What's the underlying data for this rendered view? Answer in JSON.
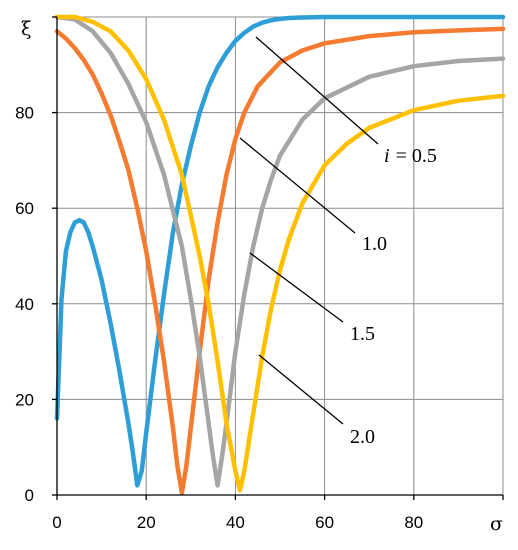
{
  "chart_data": {
    "type": "line",
    "xlabel": "σ",
    "ylabel": "ξ",
    "xlim": [
      0,
      100
    ],
    "ylim": [
      0,
      100
    ],
    "xticks": [
      "0",
      "20",
      "40",
      "60",
      "80"
    ],
    "yticks": [
      "0",
      "20",
      "40",
      "60",
      "80"
    ],
    "grid": true,
    "series": [
      {
        "name": "i = 0.5",
        "name_var": "i",
        "name_value": "= 0.5",
        "color": "#2e9fd6",
        "x": [
          0,
          1,
          2,
          3,
          4,
          5,
          6,
          7,
          8,
          10,
          12,
          14,
          16,
          17,
          18,
          19,
          20,
          22,
          24,
          26,
          28,
          30,
          32,
          34,
          36,
          38,
          40,
          42,
          44,
          46,
          48,
          50,
          52,
          55,
          60,
          70,
          80,
          90,
          100
        ],
        "y": [
          16,
          41,
          51,
          55,
          57,
          57.5,
          57,
          55,
          52,
          45,
          36,
          26,
          15,
          9,
          2,
          5,
          13,
          28,
          42,
          55,
          65,
          73,
          80,
          85.5,
          89.5,
          92.5,
          95,
          96.7,
          98,
          98.8,
          99.3,
          99.6,
          99.8,
          99.9,
          100,
          100,
          100,
          100,
          100
        ]
      },
      {
        "name": "1.0",
        "color": "#f47b2f",
        "x": [
          0,
          2,
          4,
          6,
          8,
          10,
          12,
          14,
          16,
          18,
          20,
          22,
          24,
          26,
          27,
          28,
          29,
          30,
          32,
          34,
          36,
          38,
          40,
          42,
          45,
          50,
          55,
          60,
          70,
          80,
          90,
          100
        ],
        "y": [
          97,
          95.5,
          93.5,
          91,
          88,
          84,
          79.5,
          74,
          68,
          60,
          51,
          40,
          28,
          14,
          6,
          0.5,
          6,
          14,
          30,
          45,
          57,
          67,
          74.5,
          80,
          85.5,
          90.5,
          93,
          94.5,
          96,
          96.8,
          97.2,
          97.5
        ]
      },
      {
        "name": "1.5",
        "color": "#a5a5a5",
        "x": [
          0,
          4,
          8,
          12,
          16,
          20,
          24,
          28,
          30,
          32,
          34,
          35,
          36,
          37,
          38,
          40,
          42,
          44,
          46,
          48,
          50,
          55,
          60,
          70,
          80,
          90,
          100
        ],
        "y": [
          100,
          99.5,
          97,
          92.5,
          86,
          78,
          67,
          52,
          41,
          29,
          15,
          8,
          2,
          8,
          15,
          30,
          42,
          52,
          60,
          66,
          71,
          78.5,
          83,
          87.5,
          89.7,
          90.8,
          91.3
        ]
      },
      {
        "name": "2.0",
        "color": "#ffc000",
        "x": [
          0,
          4,
          8,
          12,
          16,
          20,
          24,
          28,
          32,
          34,
          36,
          38,
          40,
          41,
          42,
          44,
          46,
          48,
          50,
          52,
          55,
          60,
          65,
          70,
          80,
          90,
          100
        ],
        "y": [
          100,
          100,
          99,
          97,
          93,
          87,
          78.5,
          67,
          50,
          40,
          28,
          15,
          5,
          1,
          5,
          17,
          29,
          39,
          47,
          53.5,
          61,
          69,
          73.5,
          76.8,
          80.5,
          82.5,
          83.5
        ]
      }
    ],
    "annotations": [
      {
        "series": "i = 0.5",
        "text": "i = 0.5"
      },
      {
        "series": "1.0",
        "text": "1.0"
      },
      {
        "series": "1.5",
        "text": "1.5"
      },
      {
        "series": "2.0",
        "text": "2.0"
      }
    ]
  }
}
